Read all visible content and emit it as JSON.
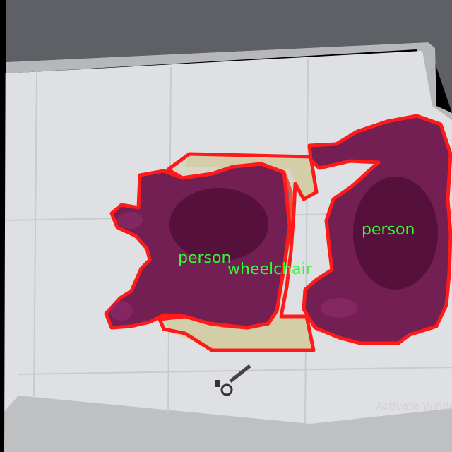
{
  "image": {
    "description_free": true
  },
  "colors": {
    "mask_outline": "#ff1a1a",
    "mask_fill": "#6b1048",
    "label_text": "#2bff2b",
    "floor": "#dcdde0",
    "wall_trim": "#b9b9b9",
    "background": "#000000"
  },
  "labels": {
    "person_left": "person",
    "wheelchair": "wheelchair",
    "person_right": "person"
  },
  "watermark": {
    "text": "Activate Windo"
  }
}
